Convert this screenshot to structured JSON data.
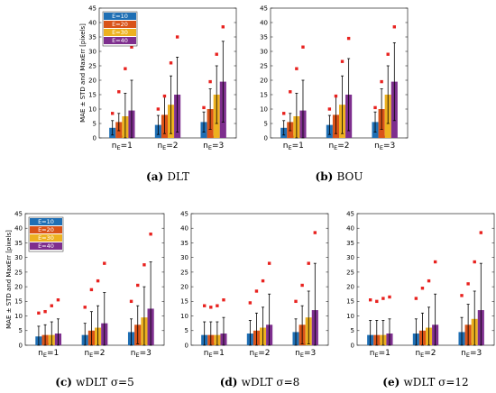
{
  "colors": [
    "#1f6fb4",
    "#d95319",
    "#edb120",
    "#7e2f8e"
  ],
  "maxerr_color": "#e8221f",
  "chart_data": [
    {
      "type": "bar",
      "caption_letter": "(a)",
      "caption_text": "DLT",
      "ylabel": "MAE ± STD and MaxErr [pixels]",
      "ylim": [
        0,
        45
      ],
      "yticks": [
        0,
        5,
        10,
        15,
        20,
        25,
        30,
        35,
        40,
        45
      ],
      "categories": [
        "n_E=1",
        "n_E=2",
        "n_E=3"
      ],
      "legend": {
        "position": "top-left",
        "entries": [
          "E=10",
          "E=20",
          "E=30",
          "E=40"
        ]
      },
      "series": [
        {
          "name": "E=10",
          "mae": [
            3.5,
            4.5,
            5.5
          ],
          "std": [
            2.5,
            3.3,
            3.5
          ],
          "maxerr": [
            8.5,
            10,
            10.5
          ]
        },
        {
          "name": "E=20",
          "mae": [
            5.5,
            8,
            10
          ],
          "std": [
            3,
            6.5,
            7
          ],
          "maxerr": [
            16,
            14.5,
            19.5
          ]
        },
        {
          "name": "E=30",
          "mae": [
            7.5,
            11.5,
            15
          ],
          "std": [
            8,
            10,
            10
          ],
          "maxerr": [
            24,
            26,
            29
          ]
        },
        {
          "name": "E=40",
          "mae": [
            9.5,
            15,
            19.5
          ],
          "std": [
            10.5,
            13,
            14
          ],
          "maxerr": [
            31.5,
            35,
            38.5
          ]
        }
      ]
    },
    {
      "type": "bar",
      "caption_letter": "(b)",
      "caption_text": "BOU",
      "ylabel": "",
      "ylim": [
        0,
        45
      ],
      "yticks": [
        0,
        5,
        10,
        15,
        20,
        25,
        30,
        35,
        40,
        45
      ],
      "categories": [
        "n_E=1",
        "n_E=2",
        "n_E=3"
      ],
      "series": [
        {
          "name": "E=10",
          "mae": [
            3.5,
            4.5,
            5.5
          ],
          "std": [
            2.5,
            3.3,
            3.5
          ],
          "maxerr": [
            8.5,
            10,
            10.5
          ]
        },
        {
          "name": "E=20",
          "mae": [
            5.5,
            8,
            10
          ],
          "std": [
            3,
            6.5,
            7
          ],
          "maxerr": [
            16,
            14.5,
            19.5
          ]
        },
        {
          "name": "E=30",
          "mae": [
            7.5,
            11.5,
            15
          ],
          "std": [
            8,
            10,
            10
          ],
          "maxerr": [
            24,
            26.5,
            29
          ]
        },
        {
          "name": "E=40",
          "mae": [
            9.5,
            15,
            19.5
          ],
          "std": [
            10.5,
            12.5,
            13.5
          ],
          "maxerr": [
            31.5,
            34.5,
            38.5
          ]
        }
      ]
    },
    {
      "type": "bar",
      "caption_letter": "(c)",
      "caption_text": "wDLT σ=5",
      "ylabel": "MAE ± STD and MaxErr [pixels]",
      "ylim": [
        0,
        45
      ],
      "yticks": [
        0,
        5,
        10,
        15,
        20,
        25,
        30,
        35,
        40,
        45
      ],
      "categories": [
        "n_E=1",
        "n_E=2",
        "n_E=3"
      ],
      "legend": {
        "position": "top-left",
        "entries": [
          "E=10",
          "E=20",
          "E=30",
          "E=40"
        ]
      },
      "series": [
        {
          "name": "E=10",
          "mae": [
            3,
            3.5,
            4.5
          ],
          "std": [
            3.5,
            4,
            4.5
          ],
          "maxerr": [
            11,
            13,
            15
          ]
        },
        {
          "name": "E=20",
          "mae": [
            3.5,
            5,
            7
          ],
          "std": [
            3.5,
            6.5,
            6.5
          ],
          "maxerr": [
            11.5,
            19,
            20.5
          ]
        },
        {
          "name": "E=30",
          "mae": [
            3.5,
            6,
            9.5
          ],
          "std": [
            4.5,
            7.5,
            10.5
          ],
          "maxerr": [
            13.5,
            22,
            27.5
          ]
        },
        {
          "name": "E=40",
          "mae": [
            4,
            7.5,
            12.5
          ],
          "std": [
            5,
            10.5,
            16
          ],
          "maxerr": [
            15.5,
            28,
            38
          ]
        }
      ]
    },
    {
      "type": "bar",
      "caption_letter": "(d)",
      "caption_text": "wDLT σ=8",
      "ylabel": "",
      "ylim": [
        0,
        45
      ],
      "yticks": [
        0,
        5,
        10,
        15,
        20,
        25,
        30,
        35,
        40,
        45
      ],
      "categories": [
        "n_E=1",
        "n_E=2",
        "n_E=3"
      ],
      "series": [
        {
          "name": "E=10",
          "mae": [
            3.5,
            4,
            4.5
          ],
          "std": [
            4.5,
            4.5,
            4.5
          ],
          "maxerr": [
            13.5,
            14.5,
            15
          ]
        },
        {
          "name": "E=20",
          "mae": [
            3.5,
            5,
            7
          ],
          "std": [
            4.5,
            6,
            6.5
          ],
          "maxerr": [
            13,
            18.5,
            20.5
          ]
        },
        {
          "name": "E=30",
          "mae": [
            3.5,
            6,
            9.5
          ],
          "std": [
            4.5,
            7,
            9
          ],
          "maxerr": [
            13.5,
            22,
            28
          ]
        },
        {
          "name": "E=40",
          "mae": [
            4,
            7,
            12
          ],
          "std": [
            5.5,
            10.5,
            16
          ],
          "maxerr": [
            15.5,
            28,
            38.5
          ]
        }
      ]
    },
    {
      "type": "bar",
      "caption_letter": "(e)",
      "caption_text": "wDLT σ=12",
      "ylabel": "",
      "ylim": [
        0,
        45
      ],
      "yticks": [
        0,
        5,
        10,
        15,
        20,
        25,
        30,
        35,
        40,
        45
      ],
      "categories": [
        "n_E=1",
        "n_E=2",
        "n_E=3"
      ],
      "series": [
        {
          "name": "E=10",
          "mae": [
            3.5,
            4,
            4.5
          ],
          "std": [
            5,
            5,
            5
          ],
          "maxerr": [
            15.5,
            16,
            17
          ]
        },
        {
          "name": "E=20",
          "mae": [
            3.5,
            5,
            7
          ],
          "std": [
            5,
            6,
            7
          ],
          "maxerr": [
            15,
            19.5,
            21
          ]
        },
        {
          "name": "E=30",
          "mae": [
            3.5,
            6,
            9
          ],
          "std": [
            5,
            7,
            9.5
          ],
          "maxerr": [
            16,
            22,
            28.5
          ]
        },
        {
          "name": "E=40",
          "mae": [
            4,
            7,
            12
          ],
          "std": [
            5,
            10.5,
            16
          ],
          "maxerr": [
            16.5,
            28.5,
            38.5
          ]
        }
      ]
    }
  ]
}
